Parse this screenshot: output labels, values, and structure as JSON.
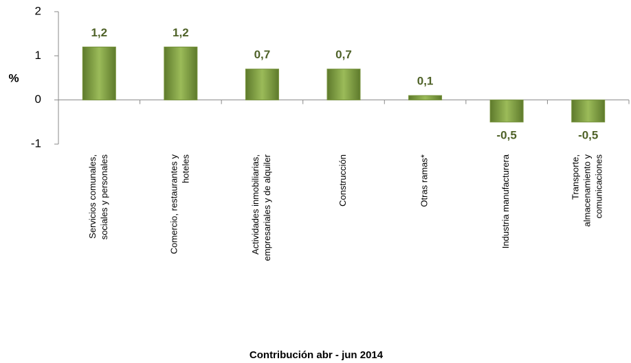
{
  "chart_data": {
    "type": "bar",
    "y_label": "%",
    "x_label": "Contribución  abr - jun 2014",
    "categories": [
      "Servicios comunales,\nsociales y personales",
      "Comercio, restaurantes y\nhoteles",
      "Actividades inmobiliarias,\nempresariales y de alquiler",
      "Construcción",
      "Otras ramas*",
      "Industria manufacturera",
      "Transporte,\nalmacenamiento y\ncomunicaciones"
    ],
    "values": [
      1.2,
      1.2,
      0.7,
      0.7,
      0.1,
      -0.5,
      -0.5
    ],
    "value_labels": [
      "1,2",
      "1,2",
      "0,7",
      "0,7",
      "0,1",
      "-0,5",
      "-0,5"
    ],
    "color": "#77933c",
    "ylim": [
      -1,
      2
    ],
    "yticks": [
      -1,
      0,
      1,
      2
    ]
  }
}
